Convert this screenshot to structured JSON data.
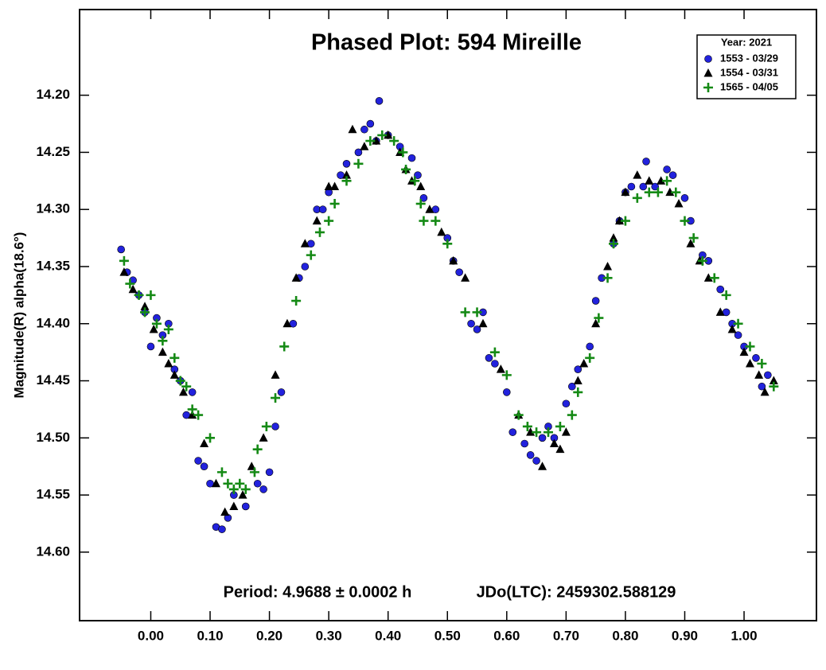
{
  "chart_data": {
    "type": "scatter",
    "title": "Phased Plot: 594 Mireille",
    "ylabel": "Magnitude(R) alpha(18.6°)",
    "annotations": [
      "Period: 4.9688 ± 0.0002 h",
      "JDo(LTC): 2459302.588129"
    ],
    "legend_title": "Year: 2021",
    "legend": "upper right",
    "xlim": [
      -0.12,
      1.122
    ],
    "ylim": [
      14.125,
      14.66
    ],
    "y_inverted": true,
    "xticks": [
      {
        "value": 0,
        "label": "0.00"
      },
      {
        "value": 0.1,
        "label": "0.10"
      },
      {
        "value": 0.2,
        "label": "0.20"
      },
      {
        "value": 0.3,
        "label": "0.30"
      },
      {
        "value": 0.4,
        "label": "0.40"
      },
      {
        "value": 0.5,
        "label": "0.50"
      },
      {
        "value": 0.6,
        "label": "0.60"
      },
      {
        "value": 0.7,
        "label": "0.70"
      },
      {
        "value": 0.8,
        "label": "0.80"
      },
      {
        "value": 0.9,
        "label": "0.90"
      },
      {
        "value": 1,
        "label": "1.00"
      }
    ],
    "yticks": [
      {
        "value": 14.2,
        "label": "14.20"
      },
      {
        "value": 14.25,
        "label": "14.25"
      },
      {
        "value": 14.3,
        "label": "14.30"
      },
      {
        "value": 14.35,
        "label": "14.35"
      },
      {
        "value": 14.4,
        "label": "14.40"
      },
      {
        "value": 14.45,
        "label": "14.45"
      },
      {
        "value": 14.5,
        "label": "14.50"
      },
      {
        "value": 14.55,
        "label": "14.55"
      },
      {
        "value": 14.6,
        "label": "14.60"
      }
    ],
    "series": [
      {
        "name": "1553 - 03/29",
        "color": "#2222dd",
        "marker": "circle",
        "x": [
          -0.05,
          -0.04,
          -0.03,
          -0.02,
          -0.01,
          0.0,
          0.01,
          0.02,
          0.03,
          0.04,
          0.05,
          0.06,
          0.07,
          0.08,
          0.09,
          0.1,
          0.11,
          0.12,
          0.13,
          0.14,
          0.16,
          0.18,
          0.19,
          0.2,
          0.21,
          0.22,
          0.24,
          0.25,
          0.26,
          0.27,
          0.28,
          0.29,
          0.3,
          0.32,
          0.33,
          0.35,
          0.36,
          0.37,
          0.38,
          0.385,
          0.4,
          0.42,
          0.44,
          0.45,
          0.46,
          0.48,
          0.5,
          0.51,
          0.52,
          0.54,
          0.55,
          0.56,
          0.57,
          0.58,
          0.6,
          0.61,
          0.63,
          0.64,
          0.65,
          0.66,
          0.67,
          0.68,
          0.7,
          0.71,
          0.72,
          0.74,
          0.75,
          0.76,
          0.78,
          0.79,
          0.8,
          0.81,
          0.83,
          0.835,
          0.85,
          0.87,
          0.88,
          0.9,
          0.91,
          0.93,
          0.94,
          0.96,
          0.97,
          0.98,
          0.99,
          1.0,
          1.02,
          1.03,
          1.04
        ],
        "values": [
          14.335,
          14.355,
          14.362,
          14.375,
          14.39,
          14.42,
          14.395,
          14.41,
          14.4,
          14.44,
          14.45,
          14.48,
          14.46,
          14.52,
          14.525,
          14.54,
          14.578,
          14.58,
          14.57,
          14.55,
          14.56,
          14.54,
          14.545,
          14.53,
          14.49,
          14.46,
          14.4,
          14.36,
          14.35,
          14.33,
          14.3,
          14.3,
          14.285,
          14.27,
          14.26,
          14.25,
          14.23,
          14.225,
          14.24,
          14.205,
          14.235,
          14.245,
          14.255,
          14.27,
          14.29,
          14.3,
          14.325,
          14.345,
          14.355,
          14.4,
          14.405,
          14.39,
          14.43,
          14.435,
          14.46,
          14.495,
          14.505,
          14.515,
          14.52,
          14.5,
          14.49,
          14.5,
          14.47,
          14.455,
          14.44,
          14.42,
          14.38,
          14.36,
          14.33,
          14.31,
          14.285,
          14.28,
          14.28,
          14.258,
          14.28,
          14.265,
          14.27,
          14.29,
          14.31,
          14.34,
          14.345,
          14.37,
          14.39,
          14.4,
          14.41,
          14.42,
          14.43,
          14.455,
          14.445
        ]
      },
      {
        "name": "1554 - 03/31",
        "color": "#000000",
        "marker": "triangle",
        "x": [
          -0.045,
          -0.03,
          -0.01,
          0.005,
          0.02,
          0.03,
          0.04,
          0.055,
          0.07,
          0.09,
          0.11,
          0.125,
          0.14,
          0.155,
          0.17,
          0.19,
          0.21,
          0.23,
          0.245,
          0.26,
          0.28,
          0.3,
          0.31,
          0.33,
          0.34,
          0.36,
          0.38,
          0.4,
          0.42,
          0.43,
          0.44,
          0.455,
          0.47,
          0.49,
          0.51,
          0.53,
          0.56,
          0.59,
          0.62,
          0.64,
          0.66,
          0.68,
          0.69,
          0.7,
          0.72,
          0.73,
          0.75,
          0.77,
          0.78,
          0.79,
          0.8,
          0.82,
          0.84,
          0.86,
          0.875,
          0.89,
          0.91,
          0.925,
          0.94,
          0.96,
          0.98,
          1.0,
          1.01,
          1.025,
          1.035,
          1.05
        ],
        "values": [
          14.355,
          14.37,
          14.385,
          14.405,
          14.425,
          14.435,
          14.445,
          14.46,
          14.48,
          14.505,
          14.54,
          14.565,
          14.56,
          14.55,
          14.525,
          14.5,
          14.445,
          14.4,
          14.36,
          14.33,
          14.31,
          14.28,
          14.28,
          14.27,
          14.23,
          14.245,
          14.24,
          14.235,
          14.25,
          14.265,
          14.275,
          14.28,
          14.3,
          14.32,
          14.345,
          14.36,
          14.4,
          14.44,
          14.48,
          14.495,
          14.525,
          14.505,
          14.51,
          14.495,
          14.45,
          14.435,
          14.4,
          14.35,
          14.325,
          14.31,
          14.285,
          14.27,
          14.275,
          14.275,
          14.285,
          14.295,
          14.33,
          14.345,
          14.36,
          14.39,
          14.405,
          14.425,
          14.435,
          14.445,
          14.46,
          14.45
        ]
      },
      {
        "name": "1565 - 04/05",
        "color": "#158a15",
        "marker": "plus",
        "x": [
          -0.045,
          -0.035,
          -0.02,
          -0.01,
          0.0,
          0.01,
          0.02,
          0.03,
          0.04,
          0.05,
          0.06,
          0.07,
          0.08,
          0.1,
          0.12,
          0.13,
          0.14,
          0.15,
          0.16,
          0.175,
          0.18,
          0.195,
          0.21,
          0.225,
          0.245,
          0.27,
          0.285,
          0.3,
          0.31,
          0.33,
          0.35,
          0.37,
          0.39,
          0.41,
          0.425,
          0.43,
          0.445,
          0.455,
          0.46,
          0.48,
          0.5,
          0.53,
          0.55,
          0.58,
          0.6,
          0.62,
          0.635,
          0.65,
          0.67,
          0.69,
          0.71,
          0.72,
          0.74,
          0.755,
          0.77,
          0.78,
          0.8,
          0.82,
          0.84,
          0.855,
          0.87,
          0.885,
          0.9,
          0.915,
          0.93,
          0.95,
          0.97,
          0.99,
          1.01,
          1.03,
          1.05
        ],
        "values": [
          14.345,
          14.365,
          14.375,
          14.39,
          14.375,
          14.4,
          14.415,
          14.405,
          14.43,
          14.45,
          14.455,
          14.475,
          14.48,
          14.5,
          14.53,
          14.54,
          14.545,
          14.54,
          14.545,
          14.53,
          14.51,
          14.49,
          14.465,
          14.42,
          14.38,
          14.34,
          14.32,
          14.31,
          14.295,
          14.275,
          14.26,
          14.24,
          14.235,
          14.24,
          14.25,
          14.265,
          14.275,
          14.295,
          14.31,
          14.31,
          14.33,
          14.39,
          14.39,
          14.425,
          14.445,
          14.48,
          14.49,
          14.495,
          14.495,
          14.49,
          14.48,
          14.46,
          14.43,
          14.395,
          14.36,
          14.33,
          14.31,
          14.29,
          14.285,
          14.285,
          14.275,
          14.285,
          14.31,
          14.325,
          14.345,
          14.36,
          14.375,
          14.4,
          14.42,
          14.435,
          14.455
        ]
      }
    ]
  }
}
